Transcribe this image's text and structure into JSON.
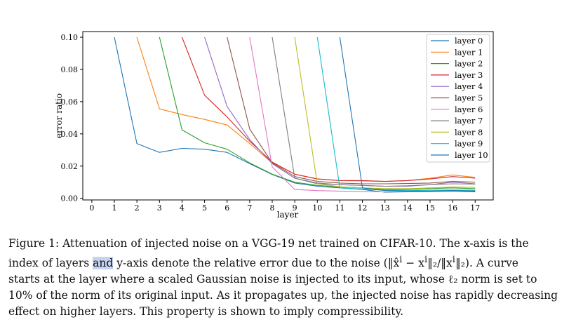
{
  "chart_data": {
    "type": "line",
    "xlabel": "layer",
    "ylabel": "error ratio",
    "xlim": [
      -0.4,
      17.8
    ],
    "ylim": [
      -0.001,
      0.1035
    ],
    "xticks": [
      0,
      1,
      2,
      3,
      4,
      5,
      6,
      7,
      8,
      9,
      10,
      11,
      12,
      13,
      14,
      15,
      16,
      17
    ],
    "yticks": [
      0.0,
      0.02,
      0.04,
      0.06,
      0.08,
      0.1
    ],
    "ytick_labels": [
      "0.00",
      "0.02",
      "0.04",
      "0.06",
      "0.08",
      "0.10"
    ],
    "legend_position": "top-right",
    "series": [
      {
        "name": "layer 0",
        "color": "#1f77b4",
        "x": [
          1,
          2,
          3,
          4,
          5,
          6,
          7,
          8,
          9,
          10,
          11,
          12,
          13,
          14,
          15,
          16,
          17
        ],
        "values": [
          0.1,
          0.034,
          0.0285,
          0.031,
          0.0305,
          0.0285,
          0.0215,
          0.0148,
          0.0095,
          0.0075,
          0.0065,
          0.0055,
          0.0038,
          0.004,
          0.0042,
          0.0045,
          0.004
        ]
      },
      {
        "name": "layer 1",
        "color": "#ff7f0e",
        "x": [
          2,
          3,
          4,
          5,
          6,
          7,
          8,
          9,
          10,
          11,
          12,
          13,
          14,
          15,
          16,
          17
        ],
        "values": [
          0.1,
          0.0555,
          0.052,
          0.049,
          0.0455,
          0.034,
          0.022,
          0.015,
          0.012,
          0.011,
          0.0108,
          0.0105,
          0.011,
          0.0125,
          0.0145,
          0.013
        ]
      },
      {
        "name": "layer 2",
        "color": "#2ca02c",
        "x": [
          3,
          4,
          5,
          6,
          7,
          8,
          9,
          10,
          11,
          12,
          13,
          14,
          15,
          16,
          17
        ],
        "values": [
          0.1,
          0.0425,
          0.0345,
          0.0305,
          0.022,
          0.015,
          0.01,
          0.008,
          0.007,
          0.0065,
          0.0055,
          0.0055,
          0.006,
          0.0065,
          0.006
        ]
      },
      {
        "name": "layer 3",
        "color": "#d62728",
        "x": [
          4,
          5,
          6,
          7,
          8,
          9,
          10,
          11,
          12,
          13,
          14,
          15,
          16,
          17
        ],
        "values": [
          0.1,
          0.064,
          0.0505,
          0.0355,
          0.0225,
          0.015,
          0.012,
          0.011,
          0.011,
          0.0105,
          0.011,
          0.012,
          0.0135,
          0.0125
        ]
      },
      {
        "name": "layer 4",
        "color": "#9467bd",
        "x": [
          5,
          6,
          7,
          8,
          9,
          10,
          11,
          12,
          13,
          14,
          15,
          16,
          17
        ],
        "values": [
          0.1,
          0.057,
          0.0365,
          0.0215,
          0.0125,
          0.0095,
          0.0085,
          0.008,
          0.0075,
          0.0075,
          0.0085,
          0.01,
          0.009
        ]
      },
      {
        "name": "layer 5",
        "color": "#8c564b",
        "x": [
          6,
          7,
          8,
          9,
          10,
          11,
          12,
          13,
          14,
          15,
          16,
          17
        ],
        "values": [
          0.1,
          0.043,
          0.022,
          0.0135,
          0.0105,
          0.0095,
          0.009,
          0.009,
          0.0092,
          0.0095,
          0.0105,
          0.01
        ]
      },
      {
        "name": "layer 6",
        "color": "#e377c2",
        "x": [
          7,
          8,
          9,
          10,
          11,
          12,
          13,
          14,
          15,
          16,
          17
        ],
        "values": [
          0.1,
          0.0195,
          0.0055,
          0.0048,
          0.0045,
          0.0042,
          0.004,
          0.0042,
          0.0045,
          0.005,
          0.0048
        ]
      },
      {
        "name": "layer 7",
        "color": "#7f7f7f",
        "x": [
          8,
          9,
          10,
          11,
          12,
          13,
          14,
          15,
          16,
          17
        ],
        "values": [
          0.1,
          0.0125,
          0.009,
          0.0085,
          0.008,
          0.0075,
          0.0078,
          0.0085,
          0.009,
          0.0088
        ]
      },
      {
        "name": "layer 8",
        "color": "#bcbd22",
        "x": [
          9,
          10,
          11,
          12,
          13,
          14,
          15,
          16,
          17
        ],
        "values": [
          0.1,
          0.009,
          0.0072,
          0.0065,
          0.006,
          0.006,
          0.0065,
          0.007,
          0.0068
        ]
      },
      {
        "name": "layer 9",
        "color": "#17becf",
        "x": [
          10,
          11,
          12,
          13,
          14,
          15,
          16,
          17
        ],
        "values": [
          0.1,
          0.0065,
          0.0058,
          0.005,
          0.0048,
          0.005,
          0.0052,
          0.005
        ]
      },
      {
        "name": "layer 10",
        "color": "#1f77b4",
        "x": [
          11,
          12,
          13,
          14,
          15,
          16,
          17
        ],
        "values": [
          0.1,
          0.0065,
          0.0048,
          0.0045,
          0.0045,
          0.0048,
          0.0045
        ]
      }
    ]
  },
  "caption": {
    "line1": "Figure 1: Attenuation of injected noise on a VGG-19 net trained on CIFAR-10. The x-axis is the",
    "line2_a": "index of layers ",
    "line2_hl": "and",
    "line2_b": " y-axis denote the relative error due to the noise (‖x̂",
    "line2_c": "i",
    "line2_d": " − x",
    "line2_e": "i",
    "line2_f": "‖₂/‖x",
    "line2_g": "i",
    "line2_h": "‖₂).  A curve",
    "line3": "starts at the layer where a scaled Gaussian noise is injected to its input, whose ℓ₂ norm is set to",
    "line4": "10% of the norm of its original input. As it propagates up, the injected noise has rapidly decreasing",
    "line5": "effect on higher layers. This property is shown to imply compressibility."
  }
}
